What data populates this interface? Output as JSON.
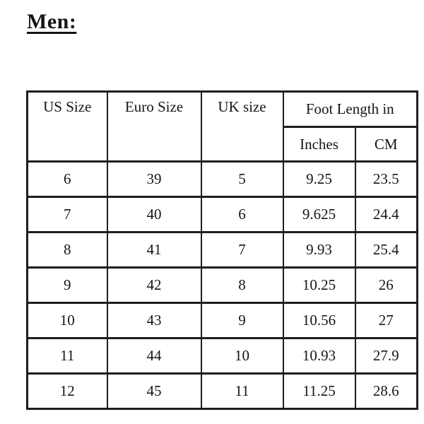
{
  "page": {
    "title": "Men:"
  },
  "table": {
    "column_headers": [
      "US Size",
      "Euro Size",
      "UK size"
    ],
    "foot_length_group_header": "Foot Length in",
    "foot_length_sub_headers": [
      "Inches",
      "CM"
    ],
    "rows": [
      {
        "cells": [
          "6",
          "39",
          "5",
          "9.25",
          "23.5"
        ]
      },
      {
        "cells": [
          "7",
          "40",
          "6",
          "9.625",
          "24.4"
        ]
      },
      {
        "cells": [
          "8",
          "41",
          "7",
          "9.93",
          "25.4"
        ]
      },
      {
        "cells": [
          "9",
          "42",
          "8",
          "10.25",
          "26"
        ]
      },
      {
        "cells": [
          "10",
          "43",
          "9",
          "10.56",
          "27"
        ]
      },
      {
        "cells": [
          "11",
          "44",
          "10",
          "10.93",
          "27.9"
        ]
      },
      {
        "cells": [
          "12",
          "45",
          "11",
          "11.25",
          "28.6"
        ]
      }
    ]
  },
  "colors": {
    "background": "#ffffff",
    "text": "#161616",
    "border": "#1e1e1e"
  }
}
